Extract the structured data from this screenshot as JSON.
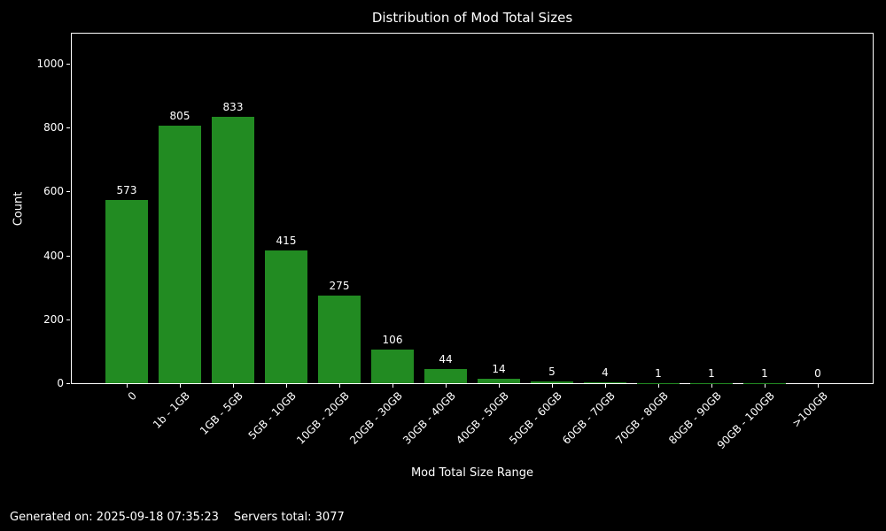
{
  "chart_data": {
    "type": "bar",
    "title": "Distribution of Mod Total Sizes",
    "xlabel": "Mod Total Size Range",
    "ylabel": "Count",
    "categories": [
      "0",
      "1b - 1GB",
      "1GB - 5GB",
      "5GB - 10GB",
      "10GB - 20GB",
      "20GB - 30GB",
      "30GB - 40GB",
      "40GB - 50GB",
      "50GB - 60GB",
      "60GB - 70GB",
      "70GB - 80GB",
      "80GB - 90GB",
      "90GB - 100GB",
      ">100GB"
    ],
    "values": [
      573,
      805,
      833,
      415,
      275,
      106,
      44,
      14,
      5,
      4,
      1,
      1,
      1,
      0
    ],
    "yticks": [
      0,
      200,
      400,
      600,
      800,
      1000
    ],
    "ylim": [
      0,
      1097
    ],
    "bar_color": "#228B22",
    "background_color": "#000000",
    "text_color": "#ffffff",
    "grid": false,
    "legend": null,
    "bar_value_labels": true
  },
  "footer": {
    "generated": "Generated on: 2025-09-18 07:35:23",
    "servers_total": "Servers total: 3077"
  }
}
